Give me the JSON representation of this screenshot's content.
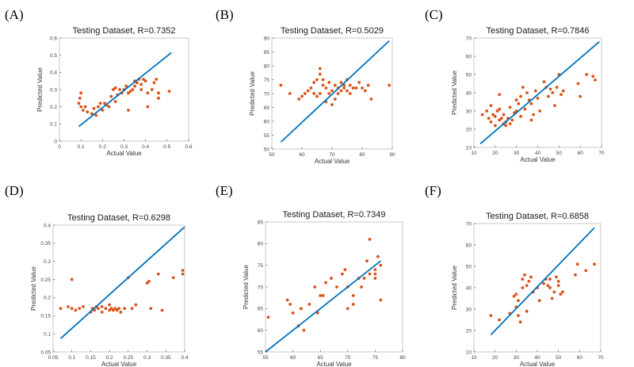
{
  "chart_data": [
    {
      "panel": "(A)",
      "type": "scatter",
      "title": "Testing Dataset, R=0.7352",
      "xlabel": "Actual Value",
      "ylabel": "Predicted Value",
      "xlim": [
        0,
        0.6
      ],
      "ylim": [
        0,
        0.6
      ],
      "xticks": [
        0,
        0.1,
        0.2,
        0.3,
        0.4,
        0.5,
        0.6
      ],
      "yticks": [
        0,
        0.1,
        0.2,
        0.3,
        0.4,
        0.5,
        0.6
      ],
      "xtick_labels": [
        "0",
        "0.1",
        "0.2",
        "0.3",
        "0.4",
        "0.5",
        "0.6"
      ],
      "ytick_labels": [
        "0",
        "0.1",
        "0.2",
        "0.3",
        "0.4",
        "0.5",
        "0.6"
      ],
      "fit_line": [
        [
          0.09,
          0.085
        ],
        [
          0.52,
          0.515
        ]
      ],
      "point_color": "#d95319",
      "line_color": "#0072bd",
      "points": [
        [
          0.09,
          0.22
        ],
        [
          0.095,
          0.25
        ],
        [
          0.1,
          0.28
        ],
        [
          0.1,
          0.2
        ],
        [
          0.11,
          0.18
        ],
        [
          0.12,
          0.2
        ],
        [
          0.13,
          0.17
        ],
        [
          0.15,
          0.16
        ],
        [
          0.16,
          0.19
        ],
        [
          0.17,
          0.15
        ],
        [
          0.18,
          0.2
        ],
        [
          0.19,
          0.22
        ],
        [
          0.2,
          0.18
        ],
        [
          0.21,
          0.22
        ],
        [
          0.22,
          0.21
        ],
        [
          0.23,
          0.2
        ],
        [
          0.24,
          0.26
        ],
        [
          0.25,
          0.3
        ],
        [
          0.26,
          0.31
        ],
        [
          0.27,
          0.27
        ],
        [
          0.28,
          0.3
        ],
        [
          0.29,
          0.28
        ],
        [
          0.3,
          0.3
        ],
        [
          0.31,
          0.32
        ],
        [
          0.32,
          0.28
        ],
        [
          0.33,
          0.29
        ],
        [
          0.34,
          0.3
        ],
        [
          0.35,
          0.32
        ],
        [
          0.35,
          0.35
        ],
        [
          0.36,
          0.34
        ],
        [
          0.37,
          0.36
        ],
        [
          0.38,
          0.33
        ],
        [
          0.38,
          0.3
        ],
        [
          0.39,
          0.36
        ],
        [
          0.4,
          0.35
        ],
        [
          0.41,
          0.28
        ],
        [
          0.41,
          0.2
        ],
        [
          0.43,
          0.3
        ],
        [
          0.44,
          0.34
        ],
        [
          0.45,
          0.36
        ],
        [
          0.46,
          0.28
        ],
        [
          0.46,
          0.25
        ],
        [
          0.51,
          0.29
        ],
        [
          0.32,
          0.18
        ],
        [
          0.26,
          0.23
        ]
      ]
    },
    {
      "panel": "(B)",
      "type": "scatter",
      "title": "Testing Dataset, R=0.5029",
      "xlabel": "Actual Value",
      "ylabel": "Predicted Value",
      "xlim": [
        50,
        90
      ],
      "ylim": [
        50,
        90
      ],
      "xticks": [
        50,
        60,
        70,
        80,
        90
      ],
      "yticks": [
        50,
        55,
        60,
        65,
        70,
        75,
        80,
        85,
        90
      ],
      "xtick_labels": [
        "50",
        "60",
        "70",
        "80",
        "90"
      ],
      "ytick_labels": [
        "50",
        "55",
        "60",
        "65",
        "70",
        "75",
        "80",
        "85",
        "90"
      ],
      "fit_line": [
        [
          53,
          52.5
        ],
        [
          89,
          89
        ]
      ],
      "point_color": "#d95319",
      "line_color": "#0072bd",
      "points": [
        [
          53,
          73
        ],
        [
          56,
          70
        ],
        [
          59,
          68
        ],
        [
          60,
          69
        ],
        [
          61,
          70
        ],
        [
          62,
          71
        ],
        [
          63,
          72
        ],
        [
          64,
          70
        ],
        [
          64,
          74
        ],
        [
          65,
          69
        ],
        [
          65,
          75
        ],
        [
          66,
          70
        ],
        [
          66,
          77
        ],
        [
          67,
          75
        ],
        [
          67,
          73
        ],
        [
          68,
          72
        ],
        [
          68,
          67
        ],
        [
          69,
          70
        ],
        [
          69,
          74
        ],
        [
          70,
          66
        ],
        [
          70,
          71
        ],
        [
          71,
          68
        ],
        [
          71,
          73
        ],
        [
          72,
          70
        ],
        [
          72,
          72
        ],
        [
          73,
          71
        ],
        [
          73,
          74
        ],
        [
          74,
          72
        ],
        [
          74,
          73
        ],
        [
          75,
          71
        ],
        [
          75,
          75
        ],
        [
          76,
          70
        ],
        [
          76,
          73
        ],
        [
          77,
          72
        ],
        [
          78,
          72
        ],
        [
          79,
          74
        ],
        [
          80,
          72
        ],
        [
          81,
          71
        ],
        [
          82,
          73
        ],
        [
          83,
          68
        ],
        [
          89,
          73
        ],
        [
          66,
          79
        ]
      ]
    },
    {
      "panel": "(C)",
      "type": "scatter",
      "title": "Testing Dataset, R=0.7846",
      "xlabel": "Actual Value",
      "ylabel": "Predicted Value",
      "xlim": [
        10,
        70
      ],
      "ylim": [
        10,
        70
      ],
      "xticks": [
        10,
        20,
        30,
        40,
        50,
        60,
        70
      ],
      "yticks": [
        10,
        20,
        30,
        40,
        50,
        60,
        70
      ],
      "xtick_labels": [
        "10",
        "20",
        "30",
        "40",
        "50",
        "60",
        "70"
      ],
      "ytick_labels": [
        "10",
        "20",
        "30",
        "40",
        "50",
        "60",
        "70"
      ],
      "fit_line": [
        [
          13,
          12
        ],
        [
          69,
          68
        ]
      ],
      "point_color": "#d95319",
      "line_color": "#0072bd",
      "points": [
        [
          14,
          28
        ],
        [
          16,
          30
        ],
        [
          17,
          26
        ],
        [
          18,
          24
        ],
        [
          18,
          33
        ],
        [
          19,
          28
        ],
        [
          20,
          22
        ],
        [
          20,
          27
        ],
        [
          21,
          30
        ],
        [
          22,
          25
        ],
        [
          22,
          31
        ],
        [
          23,
          26
        ],
        [
          24,
          23
        ],
        [
          24,
          28
        ],
        [
          25,
          24
        ],
        [
          26,
          26
        ],
        [
          27,
          23
        ],
        [
          27,
          32
        ],
        [
          28,
          25
        ],
        [
          29,
          29
        ],
        [
          30,
          30
        ],
        [
          30,
          36
        ],
        [
          31,
          34
        ],
        [
          32,
          38
        ],
        [
          32,
          27
        ],
        [
          33,
          43
        ],
        [
          34,
          31
        ],
        [
          35,
          40
        ],
        [
          36,
          36
        ],
        [
          37,
          34
        ],
        [
          38,
          28
        ],
        [
          39,
          41
        ],
        [
          40,
          37
        ],
        [
          41,
          30
        ],
        [
          43,
          46
        ],
        [
          44,
          43
        ],
        [
          45,
          38
        ],
        [
          46,
          42
        ],
        [
          47,
          40
        ],
        [
          48,
          33
        ],
        [
          49,
          43
        ],
        [
          50,
          50
        ],
        [
          51,
          39
        ],
        [
          52,
          41
        ],
        [
          59,
          45
        ],
        [
          60,
          38
        ],
        [
          63,
          50
        ],
        [
          66,
          49
        ],
        [
          67,
          47
        ],
        [
          37,
          25
        ],
        [
          22,
          39
        ],
        [
          25,
          22
        ]
      ]
    },
    {
      "panel": "(D)",
      "type": "scatter",
      "title": "Testing Dataset, R=0.6298",
      "xlabel": "Actual Value",
      "ylabel": "Predicted Value",
      "xlim": [
        0.05,
        0.4
      ],
      "ylim": [
        0.05,
        0.4
      ],
      "xticks": [
        0.05,
        0.1,
        0.15,
        0.2,
        0.25,
        0.3,
        0.35,
        0.4
      ],
      "yticks": [
        0.05,
        0.1,
        0.15,
        0.2,
        0.25,
        0.3,
        0.35,
        0.4
      ],
      "xtick_labels": [
        "0.05",
        "0.1",
        "0.15",
        "0.2",
        "0.25",
        "0.3",
        "0.35",
        "0.4"
      ],
      "ytick_labels": [
        "0.05",
        "0.1",
        "0.15",
        "0.2",
        "0.25",
        "0.3",
        "0.35",
        "0.4"
      ],
      "fit_line": [
        [
          0.07,
          0.087
        ],
        [
          0.4,
          0.395
        ]
      ],
      "point_color": "#d95319",
      "line_color": "#0072bd",
      "points": [
        [
          0.07,
          0.17
        ],
        [
          0.09,
          0.175
        ],
        [
          0.1,
          0.25
        ],
        [
          0.1,
          0.17
        ],
        [
          0.11,
          0.165
        ],
        [
          0.12,
          0.17
        ],
        [
          0.13,
          0.175
        ],
        [
          0.15,
          0.16
        ],
        [
          0.155,
          0.17
        ],
        [
          0.16,
          0.165
        ],
        [
          0.165,
          0.175
        ],
        [
          0.17,
          0.17
        ],
        [
          0.18,
          0.175
        ],
        [
          0.19,
          0.17
        ],
        [
          0.2,
          0.18
        ],
        [
          0.205,
          0.17
        ],
        [
          0.21,
          0.165
        ],
        [
          0.215,
          0.17
        ],
        [
          0.22,
          0.165
        ],
        [
          0.225,
          0.17
        ],
        [
          0.23,
          0.16
        ],
        [
          0.24,
          0.17
        ],
        [
          0.25,
          0.255
        ],
        [
          0.26,
          0.17
        ],
        [
          0.27,
          0.18
        ],
        [
          0.3,
          0.24
        ],
        [
          0.305,
          0.245
        ],
        [
          0.31,
          0.17
        ],
        [
          0.33,
          0.265
        ],
        [
          0.34,
          0.165
        ],
        [
          0.37,
          0.255
        ],
        [
          0.395,
          0.265
        ],
        [
          0.395,
          0.275
        ],
        [
          0.2,
          0.165
        ],
        [
          0.18,
          0.16
        ]
      ]
    },
    {
      "panel": "(E)",
      "type": "scatter",
      "title": "Testing Dataset, R=0.7349",
      "xlabel": "Actual Value",
      "ylabel": "Predicted Value",
      "xlim": [
        55,
        80
      ],
      "ylim": [
        55,
        85
      ],
      "xticks": [
        55,
        60,
        65,
        70,
        75,
        80
      ],
      "yticks": [
        55,
        60,
        65,
        70,
        75,
        80,
        85
      ],
      "xtick_labels": [
        "55",
        "60",
        "65",
        "70",
        "75",
        "80"
      ],
      "ytick_labels": [
        "55",
        "60",
        "65",
        "70",
        "75",
        "80",
        "85"
      ],
      "fit_line": [
        [
          55,
          55
        ],
        [
          76,
          76
        ]
      ],
      "point_color": "#d95319",
      "line_color": "#0072bd",
      "points": [
        [
          55.5,
          63
        ],
        [
          59,
          67
        ],
        [
          59.5,
          66
        ],
        [
          60,
          64
        ],
        [
          61,
          61
        ],
        [
          61.5,
          65
        ],
        [
          62,
          60
        ],
        [
          63,
          66
        ],
        [
          64,
          70
        ],
        [
          64.5,
          64
        ],
        [
          65,
          68
        ],
        [
          65.5,
          68
        ],
        [
          66,
          71
        ],
        [
          67,
          72
        ],
        [
          68,
          70
        ],
        [
          69,
          73
        ],
        [
          69.5,
          74
        ],
        [
          70,
          70
        ],
        [
          70,
          65
        ],
        [
          71,
          68
        ],
        [
          72,
          72
        ],
        [
          72.5,
          70
        ],
        [
          73,
          72
        ],
        [
          73.5,
          76
        ],
        [
          74,
          81
        ],
        [
          74,
          73
        ],
        [
          75,
          74
        ],
        [
          75,
          72
        ],
        [
          75,
          73
        ],
        [
          75.5,
          77
        ],
        [
          76,
          75
        ],
        [
          76,
          67
        ],
        [
          71,
          66
        ]
      ]
    },
    {
      "panel": "(F)",
      "type": "scatter",
      "title": "Testing Dataset, R=0.6858",
      "xlabel": "Actual Value",
      "ylabel": "Predicted Value",
      "xlim": [
        10,
        70
      ],
      "ylim": [
        10,
        70
      ],
      "xticks": [
        10,
        20,
        30,
        40,
        50,
        60,
        70
      ],
      "yticks": [
        10,
        20,
        30,
        40,
        50,
        60,
        70
      ],
      "xtick_labels": [
        "10",
        "20",
        "30",
        "40",
        "50",
        "60",
        "70"
      ],
      "ytick_labels": [
        "10",
        "20",
        "30",
        "40",
        "50",
        "60",
        "70"
      ],
      "fit_line": [
        [
          18,
          18
        ],
        [
          67,
          68
        ]
      ],
      "point_color": "#d95319",
      "line_color": "#0072bd",
      "points": [
        [
          18,
          27
        ],
        [
          22,
          25
        ],
        [
          27,
          28
        ],
        [
          29,
          36
        ],
        [
          30,
          31
        ],
        [
          31,
          34
        ],
        [
          31,
          27
        ],
        [
          32,
          24
        ],
        [
          33,
          40
        ],
        [
          33,
          44
        ],
        [
          34,
          46
        ],
        [
          35,
          41
        ],
        [
          35,
          29
        ],
        [
          36,
          43
        ],
        [
          37,
          45
        ],
        [
          38,
          38
        ],
        [
          40,
          40
        ],
        [
          41,
          34
        ],
        [
          43,
          42
        ],
        [
          44,
          44
        ],
        [
          45,
          41
        ],
        [
          46,
          40
        ],
        [
          47,
          35
        ],
        [
          48,
          38
        ],
        [
          49,
          45
        ],
        [
          50,
          43
        ],
        [
          50,
          41
        ],
        [
          51,
          37
        ],
        [
          52,
          38
        ],
        [
          58,
          46
        ],
        [
          59,
          51
        ],
        [
          63,
          48
        ],
        [
          67,
          51
        ],
        [
          30,
          37
        ],
        [
          46,
          44
        ]
      ]
    }
  ]
}
